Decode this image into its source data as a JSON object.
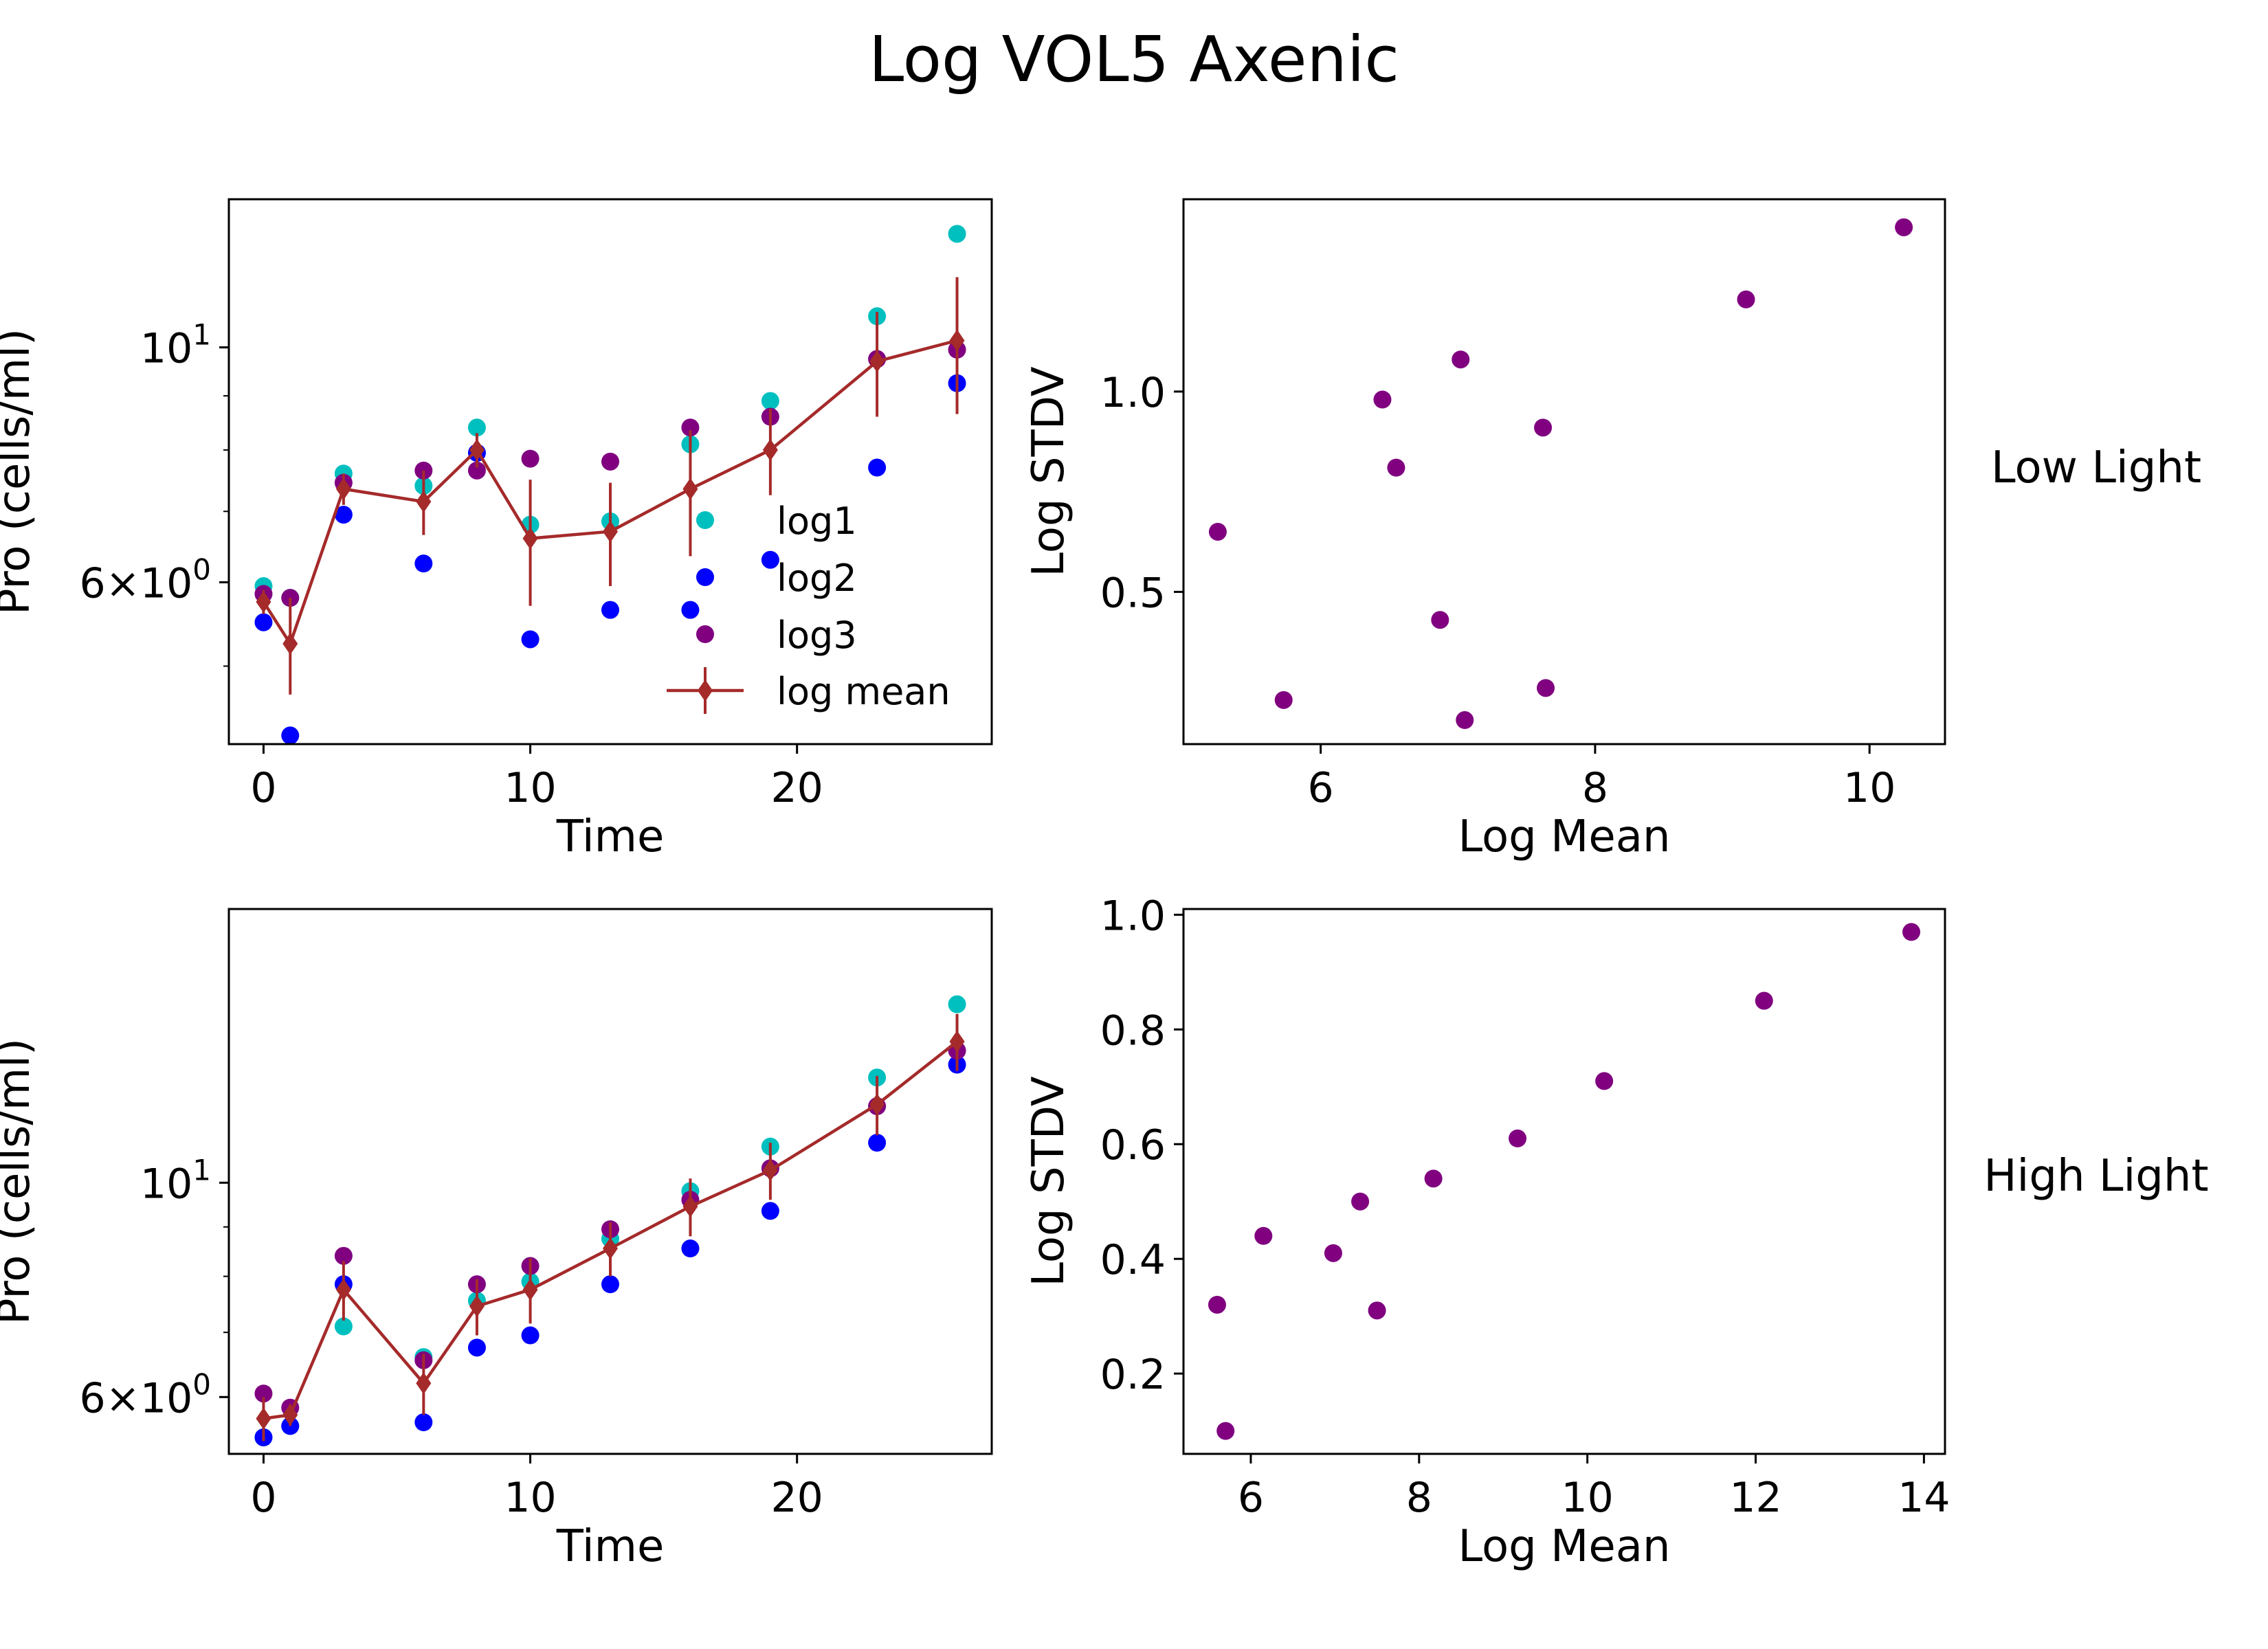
{
  "figure": {
    "title": "Log VOL5 Axenic",
    "row_labels": [
      "Low Light",
      "High Light"
    ]
  },
  "colors": {
    "log1": "#00bfbf",
    "log2": "#0000ff",
    "log3": "#800080",
    "log_mean": "#a52a2a",
    "scatter": "#800080"
  },
  "chart_data": [
    {
      "id": "low-light-time",
      "type": "line",
      "title": "",
      "xlabel": "Time",
      "ylabel": "Pro (cells/ml)",
      "y_scale": "log",
      "xlim": [
        -1.3,
        27.3
      ],
      "ylim": [
        4.22,
        13.8
      ],
      "x_ticks": [
        0,
        10,
        20
      ],
      "y_major_ticks": [
        {
          "value": 10,
          "base": "10",
          "exp": "1"
        },
        {
          "value": 6,
          "mant": "6",
          "base": "10",
          "exp": "0"
        }
      ],
      "y_minor_ticks": [
        5,
        7,
        8,
        9
      ],
      "legend": {
        "position": "lower right",
        "entries": [
          "log1",
          "log2",
          "log3",
          "log mean"
        ]
      },
      "x": [
        0,
        1,
        3,
        6,
        8,
        10,
        13,
        16,
        19,
        23,
        26
      ],
      "series": [
        {
          "name": "log1",
          "marker": "circle",
          "values": [
            5.95,
            5.8,
            7.6,
            7.4,
            8.4,
            6.8,
            6.85,
            8.1,
            8.9,
            10.7,
            12.8
          ]
        },
        {
          "name": "log2",
          "marker": "circle",
          "values": [
            5.5,
            4.3,
            6.95,
            6.25,
            7.95,
            5.3,
            5.65,
            5.65,
            6.3,
            7.7,
            9.25
          ]
        },
        {
          "name": "log3",
          "marker": "circle",
          "values": [
            5.85,
            5.8,
            7.45,
            7.65,
            7.65,
            7.85,
            7.8,
            8.4,
            8.6,
            9.75,
            9.95
          ]
        },
        {
          "name": "log mean",
          "marker": "diamond",
          "errorbars": true,
          "values": [
            5.75,
            5.25,
            7.35,
            7.15,
            8.0,
            6.6,
            6.7,
            7.35,
            8.0,
            9.7,
            10.15
          ],
          "stdv": [
            0.15,
            0.55,
            0.25,
            0.5,
            0.3,
            0.9,
            0.75,
            1.0,
            0.75,
            1.1,
            1.5
          ]
        }
      ]
    },
    {
      "id": "low-light-stdv",
      "type": "scatter",
      "title": "",
      "xlabel": "Log Mean",
      "ylabel": "Log STDV",
      "xlim": [
        5.0,
        10.55
      ],
      "ylim": [
        0.12,
        1.48
      ],
      "x_ticks": [
        6,
        8,
        10
      ],
      "y_ticks": [
        0.5,
        1.0
      ],
      "x": [
        5.25,
        5.73,
        6.45,
        6.55,
        6.87,
        7.02,
        7.05,
        7.62,
        7.64,
        9.1,
        10.25
      ],
      "y": [
        0.65,
        0.23,
        0.98,
        0.81,
        0.43,
        1.08,
        0.18,
        0.91,
        0.26,
        1.23,
        1.41
      ]
    },
    {
      "id": "high-light-time",
      "type": "line",
      "title": "",
      "xlabel": "Time",
      "ylabel": "Pro (cells/ml)",
      "y_scale": "log",
      "xlim": [
        -1.3,
        27.3
      ],
      "ylim": [
        5.24,
        19.2
      ],
      "x_ticks": [
        0,
        10,
        20
      ],
      "y_major_ticks": [
        {
          "value": 10,
          "base": "10",
          "exp": "1"
        },
        {
          "value": 6,
          "mant": "6",
          "base": "10",
          "exp": "0"
        }
      ],
      "y_minor_ticks": [
        7,
        8,
        9
      ],
      "x": [
        0,
        1,
        3,
        6,
        8,
        10,
        13,
        16,
        19,
        23,
        26
      ],
      "series": [
        {
          "name": "log1",
          "marker": "circle",
          "values": [
            5.45,
            5.6,
            7.1,
            6.6,
            7.55,
            7.9,
            8.75,
            9.8,
            10.9,
            12.85,
            15.3
          ]
        },
        {
          "name": "log2",
          "marker": "circle",
          "values": [
            5.45,
            5.6,
            7.85,
            5.65,
            6.75,
            6.95,
            7.85,
            8.55,
            9.35,
            11.0,
            13.25
          ]
        },
        {
          "name": "log3",
          "marker": "circle",
          "values": [
            6.05,
            5.85,
            8.4,
            6.55,
            7.85,
            8.2,
            8.95,
            9.6,
            10.35,
            12.0,
            13.7
          ]
        },
        {
          "name": "log mean",
          "marker": "diamond",
          "errorbars": true,
          "values": [
            5.7,
            5.75,
            7.75,
            6.2,
            7.45,
            7.75,
            8.55,
            9.45,
            10.3,
            12.05,
            14.0
          ],
          "stdv": [
            0.3,
            0.15,
            0.55,
            0.45,
            0.5,
            0.6,
            0.55,
            0.65,
            0.7,
            0.85,
            0.95
          ]
        }
      ]
    },
    {
      "id": "high-light-stdv",
      "type": "scatter",
      "title": "",
      "xlabel": "Log Mean",
      "ylabel": "Log STDV",
      "xlim": [
        5.2,
        14.25
      ],
      "ylim": [
        0.06,
        1.01
      ],
      "x_ticks": [
        6,
        8,
        10,
        12,
        14
      ],
      "y_ticks": [
        0.2,
        0.4,
        0.6,
        0.8,
        1.0
      ],
      "x": [
        5.6,
        5.7,
        6.15,
        6.98,
        7.3,
        7.5,
        8.17,
        9.17,
        10.2,
        12.1,
        13.85
      ],
      "y": [
        0.32,
        0.1,
        0.44,
        0.41,
        0.5,
        0.31,
        0.54,
        0.61,
        0.71,
        0.85,
        0.97
      ]
    }
  ]
}
